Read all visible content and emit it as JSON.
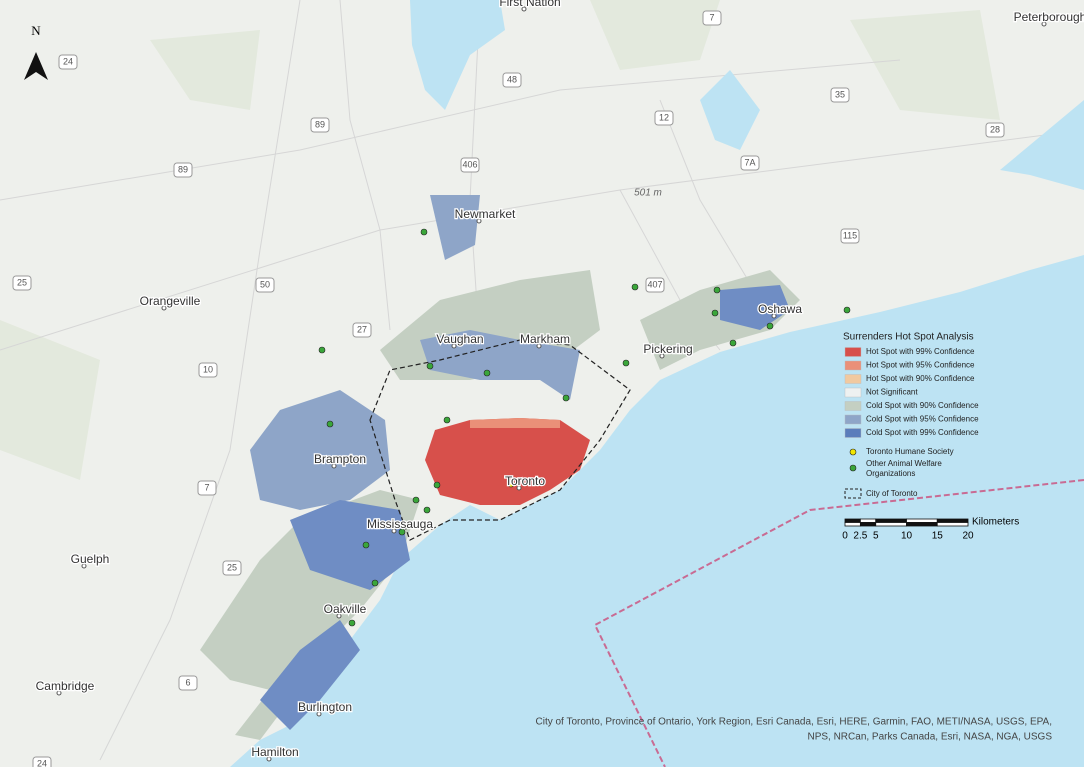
{
  "north_label": "N",
  "place_labels": [
    "First Nation",
    "Peterborough",
    "Newmarket",
    "Vaughan",
    "Markham",
    "Pickering",
    "Oshawa",
    "Orangeville",
    "Brampton",
    "Toronto",
    "Mississauga",
    "Oakville",
    "Burlington",
    "Guelph",
    "Cambridge",
    "Hamilton"
  ],
  "road_shields": [
    "24",
    "89",
    "89",
    "25",
    "50",
    "27",
    "10",
    "7",
    "25",
    "6",
    "48",
    "406",
    "12",
    "7",
    "35",
    "28",
    "7A",
    "407",
    "115",
    "24"
  ],
  "elevation_label": "501 m",
  "legend": {
    "title": "Surrenders Hot Spot Analysis",
    "items": [
      {
        "label": "Hot Spot with 99% Confidence",
        "color": "#d7504b"
      },
      {
        "label": "Hot Spot with 95% Confidence",
        "color": "#ea9078"
      },
      {
        "label": "Hot Spot with 90% Confidence",
        "color": "#f1c9a0"
      },
      {
        "label": "Not Significant",
        "color": "#eef1f1"
      },
      {
        "label": "Cold Spot with 90% Confidence",
        "color": "#c4cfc2"
      },
      {
        "label": "Cold Spot with 95% Confidence",
        "color": "#8ea5c8"
      },
      {
        "label": "Cold Spot with 99% Confidence",
        "color": "#5b7dbb"
      }
    ],
    "points": [
      {
        "label": "Toronto Humane Society",
        "color": "#f2e600"
      },
      {
        "label": "Other Animal Welfare Organizations",
        "color": "#3aa63a"
      }
    ],
    "boundary": "City of Toronto"
  },
  "scale_bar": {
    "unit": "Kilometers",
    "ticks": [
      0,
      2.5,
      5,
      10,
      15,
      20
    ]
  },
  "attribution": [
    "City of Toronto, Province of Ontario, York Region, Esri Canada, Esri, HERE, Garmin, FAO, METI/NASA, USGS, EPA,",
    "NPS, NRCan, Parks Canada, Esri, NASA, NGA, USGS"
  ]
}
